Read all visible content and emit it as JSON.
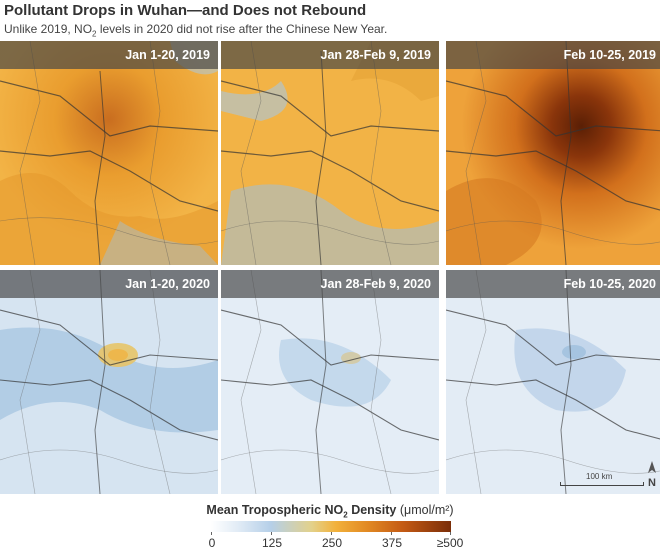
{
  "title": "Pollutant Drops in Wuhan—and Does not Rebound",
  "subtitle": {
    "before": "Unlike 2019, NO",
    "sub": "2",
    "after": " levels in 2020 did not rise after the Chinese New Year."
  },
  "panels": {
    "row_2019": [
      "Jan 1-20, 2019",
      "Jan 28-Feb 9, 2019",
      "Feb 10-25, 2019"
    ],
    "row_2020": [
      "Jan 1-20, 2020",
      "Jan 28-Feb 9, 2020",
      "Feb 10-25, 2020"
    ]
  },
  "map": {
    "scale_label": "100 km",
    "north_label": "N"
  },
  "legend": {
    "title_before": "Mean Tropospheric NO",
    "title_sub": "2",
    "title_after": " Density",
    "unit": "(μmol/m²)",
    "ticks": [
      "0",
      "125",
      "250",
      "375",
      "≥500"
    ],
    "colors": [
      "#ffffff",
      "#b5cfe8",
      "#f2b13b",
      "#c45a14",
      "#7a2d08"
    ]
  }
}
